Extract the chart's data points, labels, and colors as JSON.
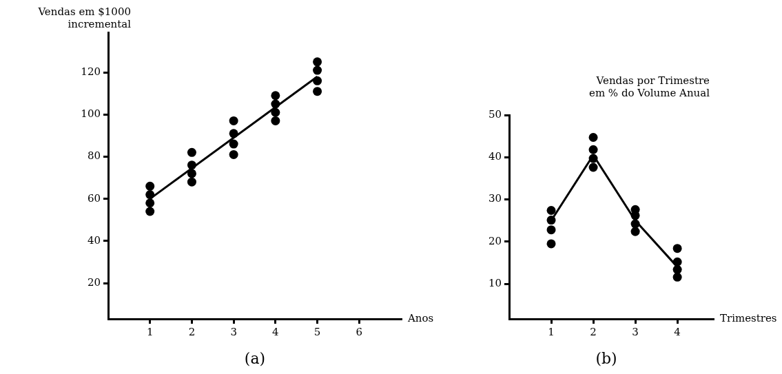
{
  "chart_data": [
    {
      "type": "scatter",
      "ylabel": "Vendas em $1000\nincremental",
      "xlabel": "Anos",
      "annotations": [
        "(a)"
      ],
      "xlim": [
        0,
        7
      ],
      "xticks": [
        1,
        2,
        3,
        4,
        5,
        6
      ],
      "ylim": [
        3,
        139
      ],
      "yticks": [
        20,
        40,
        60,
        80,
        100,
        120
      ],
      "marker": "circle",
      "legend": false,
      "series": [
        {
          "type": "scatter",
          "color": "#000000",
          "x": [
            1,
            1,
            1,
            1,
            2,
            2,
            2,
            2,
            3,
            3,
            3,
            3,
            4,
            4,
            4,
            4,
            5,
            5,
            5,
            5
          ],
          "values": [
            66,
            62,
            58,
            54,
            82,
            76,
            72,
            68,
            97,
            91,
            86,
            81,
            109,
            105,
            101,
            97,
            125,
            121,
            116,
            111
          ]
        },
        {
          "type": "line",
          "color": "#000000",
          "marker": "none",
          "x": [
            1,
            5
          ],
          "values": [
            60,
            118
          ]
        }
      ]
    },
    {
      "type": "scatter",
      "ylabel": "Vendas por Trimestre\nem % do Volume Anual",
      "xlabel": "Trimestres",
      "annotations": [
        "(b)"
      ],
      "xlim": [
        0,
        4.85
      ],
      "xticks": [
        1,
        2,
        3,
        4
      ],
      "ylim": [
        1.7,
        50
      ],
      "yticks": [
        10,
        20,
        30,
        40,
        50
      ],
      "marker": "circle",
      "legend": false,
      "series": [
        {
          "type": "scatter",
          "color": "#000000",
          "x": [
            1,
            1,
            1,
            1,
            2,
            2,
            2,
            2,
            3,
            3,
            3,
            3,
            4,
            4,
            4,
            4
          ],
          "values": [
            27.4,
            25.1,
            22.8,
            19.5,
            44.7,
            41.8,
            39.7,
            37.6,
            27.6,
            26.2,
            24.2,
            22.4,
            18.4,
            15.2,
            13.4,
            11.6
          ]
        },
        {
          "type": "line",
          "color": "#000000",
          "marker": "none",
          "x": [
            1,
            2,
            3,
            4
          ],
          "values": [
            25,
            40.5,
            25,
            14
          ]
        }
      ]
    }
  ]
}
